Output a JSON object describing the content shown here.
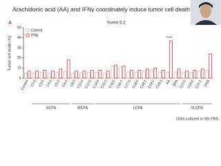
{
  "chart_data": {
    "type": "bar",
    "title": "Arachidonic acid (AA) and IFNγ coordinately induce tumor cell death",
    "panel_label": "A",
    "subtitle": "Yumm 5.2",
    "y_label": "Tumor cell death (%)",
    "note": "Cells cultured in 5% FBS",
    "categories": [
      "Control",
      "C2:0",
      "C3:0",
      "C4:0",
      "C5:0",
      "C6:0",
      "C8:0",
      "C10:0",
      "C12:0",
      "C14:0",
      "C15:0",
      "C16:0",
      "C16:1",
      "C17:0",
      "C18:0",
      "C18:1",
      "C18:2",
      "C18:3",
      "AA",
      "EPA",
      "C22:0",
      "C24:0",
      "C22:1",
      "DHA"
    ],
    "series": [
      {
        "name": "Control",
        "color": "#bbbbbb",
        "values": [
          5,
          5,
          6,
          5,
          6,
          7,
          5,
          5,
          6,
          6,
          5,
          12,
          11,
          6,
          6,
          7,
          8,
          6,
          6,
          6,
          5,
          6,
          7,
          8
        ]
      },
      {
        "name": "IFNγ",
        "color": "#e03030",
        "values": [
          7,
          7,
          8,
          7,
          9,
          18,
          7,
          7,
          8,
          8,
          7,
          13,
          12,
          8,
          8,
          9,
          10,
          8,
          37,
          9,
          7,
          8,
          9,
          24
        ]
      }
    ],
    "groups": [
      {
        "label": "SCFA",
        "first": 1,
        "last": 5
      },
      {
        "label": "MCFA",
        "first": 6,
        "last": 8
      },
      {
        "label": "LCFA",
        "first": 9,
        "last": 19
      },
      {
        "label": "VLCFA",
        "first": 20,
        "last": 23
      }
    ],
    "annotations": [
      {
        "text": "****",
        "category": 18
      }
    ],
    "ylim": [
      0,
      50
    ],
    "yticks": [
      0,
      10,
      20,
      30,
      40,
      50
    ]
  }
}
